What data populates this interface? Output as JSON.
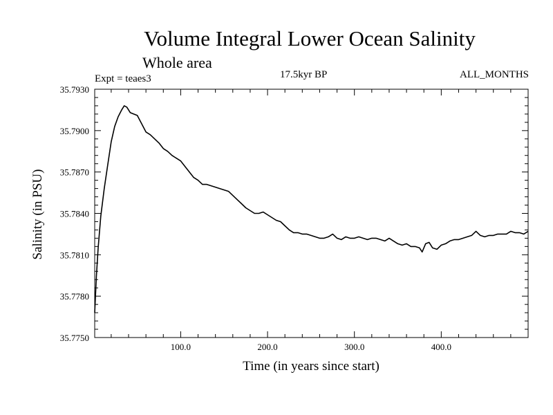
{
  "chart_data": {
    "type": "line",
    "title": "Volume Integral Lower Ocean Salinity",
    "subtitle": "Whole area",
    "experiment_label": "Expt = teaes3",
    "period_label": "17.5kyr BP",
    "months_label": "ALL_MONTHS",
    "xlabel": "Time (in years since start)",
    "ylabel": "Salinity (in PSU)",
    "xlim": [
      1,
      500
    ],
    "ylim": [
      35.775,
      35.793
    ],
    "x_ticks": [
      100,
      200,
      300,
      400
    ],
    "x_tick_labels": [
      "100.0",
      "200.0",
      "300.0",
      "400.0"
    ],
    "y_ticks": [
      35.775,
      35.778,
      35.781,
      35.784,
      35.787,
      35.79,
      35.793
    ],
    "y_tick_labels": [
      "35.7750",
      "35.7780",
      "35.7810",
      "35.7840",
      "35.7870",
      "35.7900",
      "35.7930"
    ],
    "grid": false,
    "series": [
      {
        "name": "Salinity",
        "x": [
          1,
          3,
          5,
          8,
          12,
          16,
          20,
          24,
          28,
          32,
          35,
          38,
          42,
          46,
          50,
          55,
          60,
          65,
          70,
          75,
          80,
          85,
          90,
          95,
          100,
          105,
          110,
          115,
          120,
          125,
          130,
          135,
          140,
          145,
          150,
          155,
          160,
          165,
          170,
          175,
          180,
          185,
          190,
          195,
          200,
          205,
          210,
          215,
          220,
          225,
          230,
          235,
          240,
          245,
          250,
          255,
          260,
          265,
          270,
          275,
          280,
          285,
          290,
          295,
          300,
          305,
          310,
          315,
          320,
          325,
          330,
          335,
          340,
          345,
          350,
          355,
          360,
          365,
          370,
          375,
          378,
          382,
          386,
          390,
          395,
          400,
          405,
          410,
          415,
          420,
          425,
          430,
          435,
          440,
          445,
          450,
          455,
          460,
          465,
          470,
          475,
          480,
          485,
          490,
          495,
          500
        ],
        "values": [
          35.7768,
          35.7795,
          35.7815,
          35.7838,
          35.7858,
          35.7875,
          35.7892,
          35.7903,
          35.791,
          35.7915,
          35.7918,
          35.7917,
          35.7913,
          35.7912,
          35.7911,
          35.7905,
          35.7899,
          35.7897,
          35.7894,
          35.7891,
          35.7887,
          35.7885,
          35.7882,
          35.788,
          35.7878,
          35.7874,
          35.787,
          35.7866,
          35.7864,
          35.7861,
          35.7861,
          35.786,
          35.7859,
          35.7858,
          35.7857,
          35.7856,
          35.7853,
          35.785,
          35.7847,
          35.7844,
          35.7842,
          35.784,
          35.784,
          35.7841,
          35.7839,
          35.7837,
          35.7835,
          35.7834,
          35.7831,
          35.7828,
          35.7826,
          35.7826,
          35.7825,
          35.7825,
          35.7824,
          35.7823,
          35.7822,
          35.7822,
          35.7823,
          35.7825,
          35.7822,
          35.7821,
          35.7823,
          35.7822,
          35.7822,
          35.7823,
          35.7822,
          35.7821,
          35.7822,
          35.7822,
          35.7821,
          35.782,
          35.7822,
          35.782,
          35.7818,
          35.7817,
          35.7818,
          35.7816,
          35.7816,
          35.7815,
          35.7812,
          35.7818,
          35.7819,
          35.7815,
          35.7814,
          35.7817,
          35.7818,
          35.782,
          35.7821,
          35.7821,
          35.7822,
          35.7823,
          35.7824,
          35.7827,
          35.7824,
          35.7823,
          35.7824,
          35.7824,
          35.7825,
          35.7825,
          35.7825,
          35.7827,
          35.7826,
          35.7826,
          35.7825,
          35.7827
        ]
      }
    ]
  }
}
